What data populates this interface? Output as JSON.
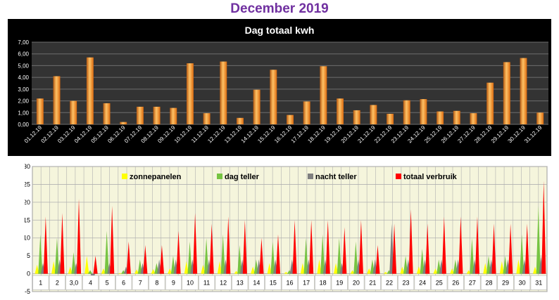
{
  "page_title": "December 2019",
  "chart_data": [
    {
      "type": "bar",
      "title": "Dag totaal kwh",
      "xlabel": "",
      "ylabel": "",
      "ylim": [
        0,
        7
      ],
      "yticks": [
        "0,00",
        "1,00",
        "2,00",
        "3,00",
        "4,00",
        "5,00",
        "6,00",
        "7,00"
      ],
      "grid": true,
      "categories": [
        "01.12.19",
        "02.12.19",
        "03.12.19",
        "04.12.19",
        "05.12.19",
        "06.12.19",
        "07.12.19",
        "08.12.19",
        "09.12.19",
        "10.12.19",
        "11.12.19",
        "12.12.19",
        "13.12.19",
        "14.12.19",
        "15.12.19",
        "16.12.19",
        "17.12.19",
        "18.12.19",
        "19.12.19",
        "20.12.19",
        "21.12.19",
        "22.12.19",
        "23.12.19",
        "24.12.19",
        "25.12.19",
        "26.12.19",
        "27.12.19",
        "28.12.19",
        "29.12.19",
        "30.12.19",
        "31.12.19"
      ],
      "values": [
        2.2,
        4.1,
        2.0,
        5.7,
        1.8,
        0.2,
        1.5,
        1.5,
        1.4,
        5.2,
        0.95,
        5.35,
        0.55,
        2.95,
        4.65,
        0.8,
        1.95,
        4.95,
        2.2,
        1.2,
        1.65,
        0.9,
        2.05,
        2.15,
        1.1,
        1.15,
        0.95,
        3.55,
        5.3,
        5.65,
        1.0
      ],
      "colors": {
        "background": "#000000",
        "plot": "#333333",
        "bar": "#f07c1b",
        "bar_light": "#ffc266",
        "grid": "#6e6e6e",
        "text": "#ffffff"
      }
    },
    {
      "type": "area",
      "title": "",
      "xlabel": "",
      "ylabel": "",
      "ylim": [
        -5,
        30
      ],
      "yticks": [
        "-5",
        "0",
        "5",
        "10",
        "15",
        "20",
        "25",
        "30"
      ],
      "grid": true,
      "categories": [
        "1",
        "2",
        "3,0",
        "4",
        "5",
        "6",
        "7",
        "8",
        "9",
        "10",
        "11",
        "12",
        "13",
        "14",
        "15",
        "16",
        "17",
        "18",
        "19",
        "20",
        "21",
        "22",
        "23",
        "24",
        "25",
        "26",
        "27",
        "28",
        "29",
        "30",
        "31"
      ],
      "legend_position": "top",
      "series": [
        {
          "name": "zonnepanelen",
          "color": "#ffff00",
          "values": [
            2.5,
            3.5,
            2.0,
            5.0,
            1.5,
            0.2,
            1.2,
            1.3,
            1.5,
            3.5,
            2.5,
            3.5,
            0.8,
            2.0,
            3.0,
            0.5,
            3.0,
            4.0,
            3.0,
            1.0,
            1.5,
            0.5,
            2.0,
            2.0,
            1.5,
            1.5,
            1.0,
            3.0,
            3.5,
            4.0,
            2.0
          ]
        },
        {
          "name": "dag teller",
          "color": "#76c442",
          "values": [
            11,
            10,
            6,
            1,
            12,
            1,
            4,
            3,
            5,
            9,
            10,
            11,
            8,
            4,
            9,
            1,
            10,
            11,
            10,
            9,
            4,
            1,
            5,
            7,
            4,
            4,
            10,
            5,
            5,
            11,
            19
          ]
        },
        {
          "name": "nacht teller",
          "color": "#7f7f7f",
          "values": [
            3,
            4,
            3,
            -3,
            3,
            2,
            3,
            4,
            4,
            4,
            4,
            4,
            4,
            4,
            4,
            4,
            4,
            4,
            3,
            4,
            4,
            14,
            4,
            4,
            4,
            4,
            4,
            4,
            4,
            4,
            5
          ]
        },
        {
          "name": "totaal verbruik",
          "color": "#ff0000",
          "values": [
            16,
            17,
            21,
            5,
            19,
            9,
            8,
            8,
            12,
            17,
            14,
            16,
            15,
            10,
            11,
            15,
            15,
            15,
            13,
            15,
            8,
            14,
            18,
            14,
            16,
            16,
            16,
            14,
            14,
            14,
            26
          ]
        }
      ],
      "colors": {
        "plot": "#f5f5dc",
        "grid": "#b0b0b0",
        "border": "#808080",
        "text": "#000000"
      }
    }
  ]
}
